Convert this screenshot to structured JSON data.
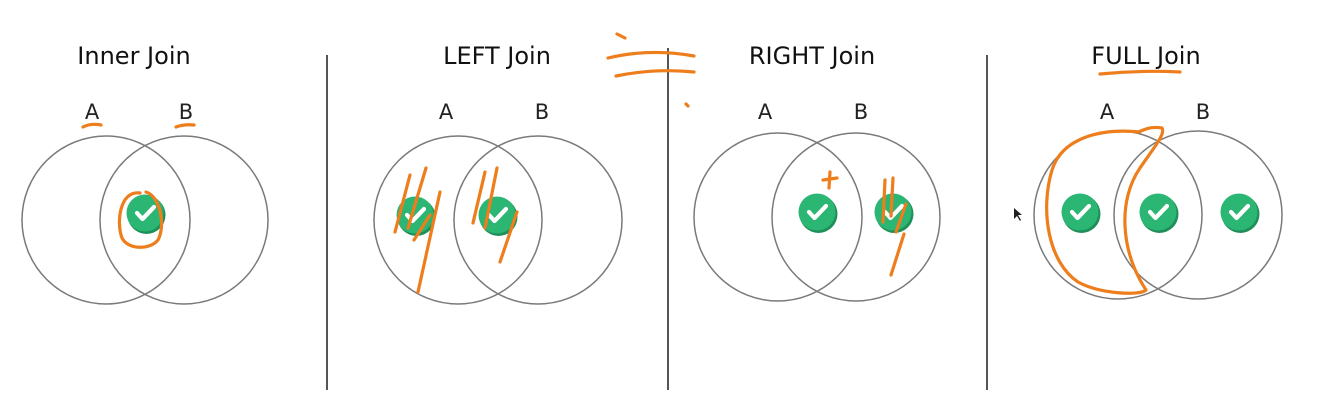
{
  "panels": [
    {
      "title": "Inner Join",
      "set_a": "A",
      "set_b": "B",
      "included_regions": [
        "intersection"
      ]
    },
    {
      "title": "LEFT Join",
      "set_a": "A",
      "set_b": "B",
      "included_regions": [
        "a-only",
        "intersection"
      ]
    },
    {
      "title": "RIGHT Join",
      "set_a": "A",
      "set_b": "B",
      "included_regions": [
        "intersection",
        "b-only"
      ]
    },
    {
      "title": "FULL Join",
      "set_a": "A",
      "set_b": "B",
      "included_regions": [
        "a-only",
        "intersection",
        "b-only"
      ]
    }
  ],
  "colors": {
    "circle_stroke": "#7a7a7a",
    "check_fill": "#2bb673",
    "check_shadow": "#1e8f58",
    "annotation": "#ee7d1c",
    "divider": "#555555"
  },
  "icons": {
    "included_marker": "check-circle-icon"
  }
}
